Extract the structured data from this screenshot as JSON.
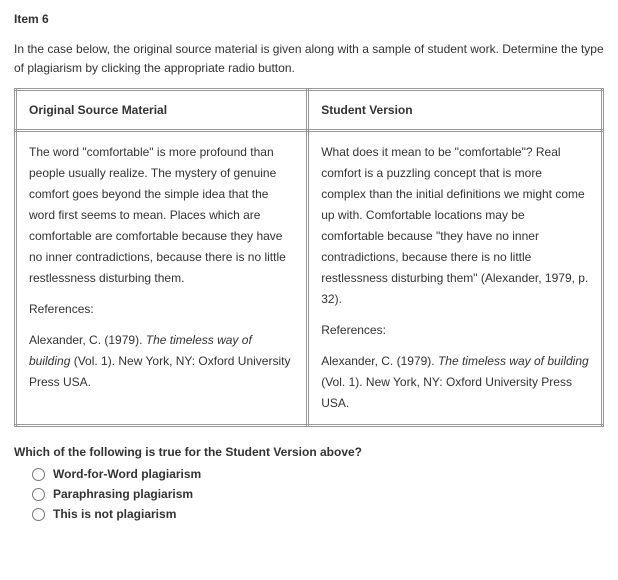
{
  "item_title": "Item 6",
  "instructions": "In the case below, the original source material is given along with a sample of student work. Determine the type of plagiarism by clicking the appropriate radio button.",
  "table": {
    "headers": {
      "original": "Original Source Material",
      "student": "Student Version"
    },
    "original": {
      "body": "The word \"comfortable\" is more profound than people usually realize. The mystery of genuine comfort goes beyond the simple idea that the word first seems to mean. Places which are comfortable are comfortable because they have no inner contradictions, because there is no little restlessness disturbing them.",
      "references_label": "References:",
      "reference_pre": "Alexander, C. (1979). ",
      "reference_title": "The timeless way of building",
      "reference_post": " (Vol. 1). New York, NY: Oxford University Press USA."
    },
    "student": {
      "body": "What does it mean to be \"comfortable\"? Real comfort is a puzzling concept that is more complex than the initial definitions we might come up with. Comfortable locations may be comfortable because \"they have no inner contradictions, because there is no little restlessness disturbing them\" (Alexander, 1979, p. 32).",
      "references_label": "References:",
      "reference_pre": "Alexander, C. (1979). ",
      "reference_title": "The timeless way of building",
      "reference_post": " (Vol. 1). New York, NY: Oxford University Press USA."
    }
  },
  "question": "Which of the following is true for the Student Version above?",
  "options": [
    {
      "label": "Word-for-Word plagiarism"
    },
    {
      "label": "Paraphrasing plagiarism"
    },
    {
      "label": "This is not plagiarism"
    }
  ]
}
